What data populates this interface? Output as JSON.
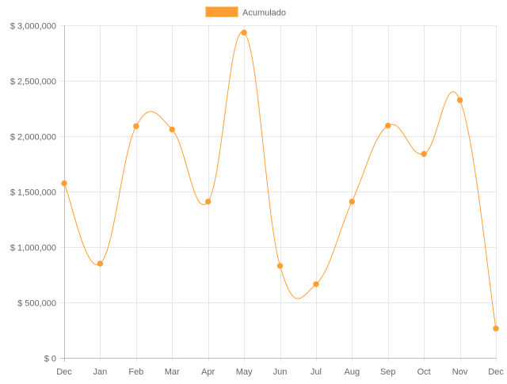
{
  "chart_data": {
    "type": "line",
    "categories": [
      "Dec",
      "Jan",
      "Feb",
      "Mar",
      "Apr",
      "May",
      "Jun",
      "Jul",
      "Aug",
      "Sep",
      "Oct",
      "Nov",
      "Dec"
    ],
    "series": [
      {
        "name": "Acumulado",
        "color": "#ff9f33",
        "values": [
          1575000,
          850000,
          2090000,
          2060000,
          1410000,
          2935000,
          830000,
          665000,
          1410000,
          2095000,
          1840000,
          2325000,
          265000
        ]
      }
    ],
    "ylim": [
      0,
      3000000
    ],
    "yticks": [
      0,
      500000,
      1000000,
      1500000,
      2000000,
      2500000,
      3000000
    ],
    "ytick_labels": [
      "$ 0",
      "$ 500,000",
      "$ 1,000,000",
      "$ 1,500,000",
      "$ 2,000,000",
      "$ 2,500,000",
      "$ 3,000,000"
    ],
    "grid": true,
    "legend_position": "top-center",
    "smooth": true
  }
}
